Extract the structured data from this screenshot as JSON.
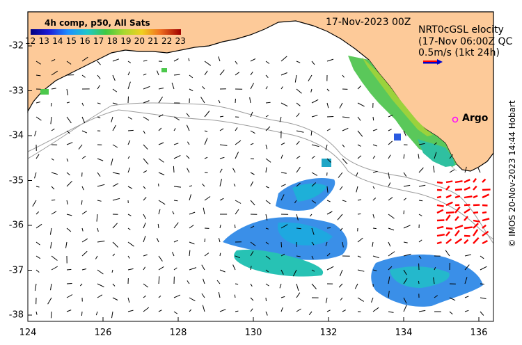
{
  "map": {
    "date_label": "17-Nov-2023 00Z",
    "colorbar": {
      "title": "4h comp, p50, All Sats",
      "ticks": [
        "12",
        "13",
        "14",
        "15",
        "16",
        "17",
        "18",
        "19",
        "20",
        "21",
        "22",
        "23"
      ]
    },
    "legend": {
      "line1": "NRT0cGSL elocity",
      "line2": "(17-Nov 06:00Z QC",
      "scale": "0.5m/s (1kt 24h)"
    },
    "argo_label": "Argo",
    "x_ticks": [
      "124",
      "126",
      "128",
      "130",
      "132",
      "134",
      "136"
    ],
    "y_ticks": [
      "-32",
      "-33",
      "-34",
      "-35",
      "-36",
      "-37",
      "-38"
    ],
    "credit": "© IMOS 20-Nov-2023 14:44 Hobart",
    "colors": {
      "land": "#fdca99",
      "current_arrows": "#000000",
      "radar_arrows": "#ff0000",
      "argo_marker": "#ff00ff",
      "bathymetry_contour": "#9b9b9b"
    }
  }
}
